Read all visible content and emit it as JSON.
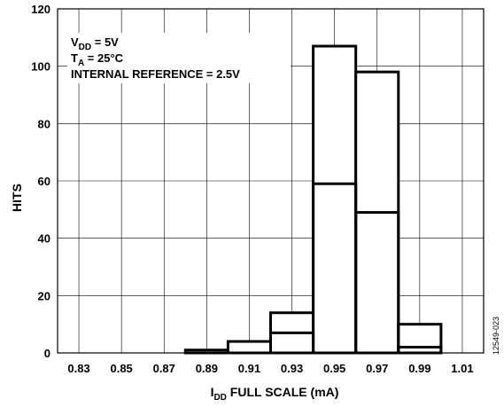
{
  "chart_data": {
    "type": "bar",
    "xlabel": {
      "main": "I",
      "sub": "DD",
      "rest": " FULL SCALE (mA)"
    },
    "ylabel": "HITS",
    "xlim": [
      0.82,
      1.02
    ],
    "ylim": [
      0,
      120
    ],
    "x_ticks": [
      "0.83",
      "0.85",
      "0.87",
      "0.89",
      "0.91",
      "0.93",
      "0.95",
      "0.97",
      "0.99",
      "1.01"
    ],
    "y_ticks": [
      "0",
      "20",
      "40",
      "60",
      "80",
      "100",
      "120"
    ],
    "bin_edges": [
      0.88,
      0.9,
      0.92,
      0.94,
      0.96,
      0.98,
      1.0
    ],
    "series": [
      {
        "values": [
          1,
          4,
          14,
          107,
          98,
          10
        ]
      },
      {
        "values": [
          0,
          0,
          7,
          59,
          49,
          2
        ]
      }
    ],
    "grid": true,
    "annotations": [
      {
        "main": "V",
        "sub": "DD",
        "rest": " = 5V"
      },
      {
        "main": "T",
        "sub": "A",
        "rest": " = 25°C"
      },
      {
        "main": "INTERNAL REFERENCE = 2.5V",
        "sub": "",
        "rest": ""
      }
    ],
    "figure_id": "12549-023"
  }
}
